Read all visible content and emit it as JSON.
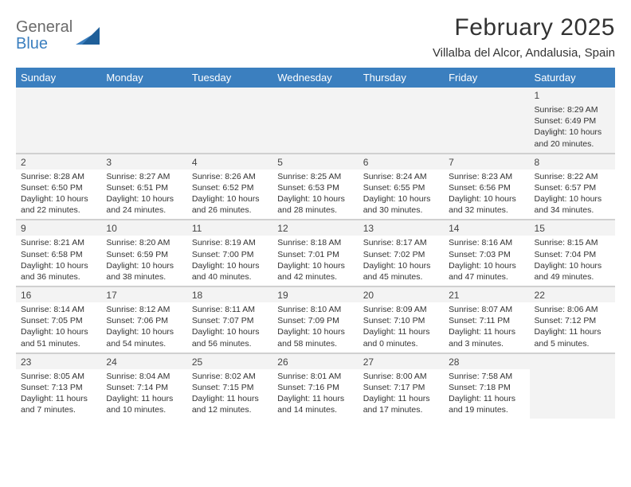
{
  "brand": {
    "line1": "General",
    "line2": "Blue",
    "text_color_line1": "#6b6b6b",
    "text_color_line2": "#3b7fbf",
    "triangle_color_dark": "#1f5f99",
    "triangle_color_light": "#3b7fbf"
  },
  "header": {
    "month_title": "February 2025",
    "location": "Villalba del Alcor, Andalusia, Spain",
    "title_fontsize": 30,
    "location_fontsize": 15,
    "title_color": "#333333"
  },
  "theme": {
    "weekday_bg": "#3b7fbf",
    "weekday_fg": "#ffffff",
    "row_divider": "#d0d0d0",
    "shade_bg": "#f3f3f3",
    "cell_font_size": 10.5,
    "daynum_font_size": 12
  },
  "weekdays": [
    "Sunday",
    "Monday",
    "Tuesday",
    "Wednesday",
    "Thursday",
    "Friday",
    "Saturday"
  ],
  "weeks": [
    [
      null,
      null,
      null,
      null,
      null,
      null,
      {
        "n": "1",
        "sunrise": "Sunrise: 8:29 AM",
        "sunset": "Sunset: 6:49 PM",
        "daylight": "Daylight: 10 hours and 20 minutes."
      }
    ],
    [
      {
        "n": "2",
        "sunrise": "Sunrise: 8:28 AM",
        "sunset": "Sunset: 6:50 PM",
        "daylight": "Daylight: 10 hours and 22 minutes."
      },
      {
        "n": "3",
        "sunrise": "Sunrise: 8:27 AM",
        "sunset": "Sunset: 6:51 PM",
        "daylight": "Daylight: 10 hours and 24 minutes."
      },
      {
        "n": "4",
        "sunrise": "Sunrise: 8:26 AM",
        "sunset": "Sunset: 6:52 PM",
        "daylight": "Daylight: 10 hours and 26 minutes."
      },
      {
        "n": "5",
        "sunrise": "Sunrise: 8:25 AM",
        "sunset": "Sunset: 6:53 PM",
        "daylight": "Daylight: 10 hours and 28 minutes."
      },
      {
        "n": "6",
        "sunrise": "Sunrise: 8:24 AM",
        "sunset": "Sunset: 6:55 PM",
        "daylight": "Daylight: 10 hours and 30 minutes."
      },
      {
        "n": "7",
        "sunrise": "Sunrise: 8:23 AM",
        "sunset": "Sunset: 6:56 PM",
        "daylight": "Daylight: 10 hours and 32 minutes."
      },
      {
        "n": "8",
        "sunrise": "Sunrise: 8:22 AM",
        "sunset": "Sunset: 6:57 PM",
        "daylight": "Daylight: 10 hours and 34 minutes."
      }
    ],
    [
      {
        "n": "9",
        "sunrise": "Sunrise: 8:21 AM",
        "sunset": "Sunset: 6:58 PM",
        "daylight": "Daylight: 10 hours and 36 minutes."
      },
      {
        "n": "10",
        "sunrise": "Sunrise: 8:20 AM",
        "sunset": "Sunset: 6:59 PM",
        "daylight": "Daylight: 10 hours and 38 minutes."
      },
      {
        "n": "11",
        "sunrise": "Sunrise: 8:19 AM",
        "sunset": "Sunset: 7:00 PM",
        "daylight": "Daylight: 10 hours and 40 minutes."
      },
      {
        "n": "12",
        "sunrise": "Sunrise: 8:18 AM",
        "sunset": "Sunset: 7:01 PM",
        "daylight": "Daylight: 10 hours and 42 minutes."
      },
      {
        "n": "13",
        "sunrise": "Sunrise: 8:17 AM",
        "sunset": "Sunset: 7:02 PM",
        "daylight": "Daylight: 10 hours and 45 minutes."
      },
      {
        "n": "14",
        "sunrise": "Sunrise: 8:16 AM",
        "sunset": "Sunset: 7:03 PM",
        "daylight": "Daylight: 10 hours and 47 minutes."
      },
      {
        "n": "15",
        "sunrise": "Sunrise: 8:15 AM",
        "sunset": "Sunset: 7:04 PM",
        "daylight": "Daylight: 10 hours and 49 minutes."
      }
    ],
    [
      {
        "n": "16",
        "sunrise": "Sunrise: 8:14 AM",
        "sunset": "Sunset: 7:05 PM",
        "daylight": "Daylight: 10 hours and 51 minutes."
      },
      {
        "n": "17",
        "sunrise": "Sunrise: 8:12 AM",
        "sunset": "Sunset: 7:06 PM",
        "daylight": "Daylight: 10 hours and 54 minutes."
      },
      {
        "n": "18",
        "sunrise": "Sunrise: 8:11 AM",
        "sunset": "Sunset: 7:07 PM",
        "daylight": "Daylight: 10 hours and 56 minutes."
      },
      {
        "n": "19",
        "sunrise": "Sunrise: 8:10 AM",
        "sunset": "Sunset: 7:09 PM",
        "daylight": "Daylight: 10 hours and 58 minutes."
      },
      {
        "n": "20",
        "sunrise": "Sunrise: 8:09 AM",
        "sunset": "Sunset: 7:10 PM",
        "daylight": "Daylight: 11 hours and 0 minutes."
      },
      {
        "n": "21",
        "sunrise": "Sunrise: 8:07 AM",
        "sunset": "Sunset: 7:11 PM",
        "daylight": "Daylight: 11 hours and 3 minutes."
      },
      {
        "n": "22",
        "sunrise": "Sunrise: 8:06 AM",
        "sunset": "Sunset: 7:12 PM",
        "daylight": "Daylight: 11 hours and 5 minutes."
      }
    ],
    [
      {
        "n": "23",
        "sunrise": "Sunrise: 8:05 AM",
        "sunset": "Sunset: 7:13 PM",
        "daylight": "Daylight: 11 hours and 7 minutes."
      },
      {
        "n": "24",
        "sunrise": "Sunrise: 8:04 AM",
        "sunset": "Sunset: 7:14 PM",
        "daylight": "Daylight: 11 hours and 10 minutes."
      },
      {
        "n": "25",
        "sunrise": "Sunrise: 8:02 AM",
        "sunset": "Sunset: 7:15 PM",
        "daylight": "Daylight: 11 hours and 12 minutes."
      },
      {
        "n": "26",
        "sunrise": "Sunrise: 8:01 AM",
        "sunset": "Sunset: 7:16 PM",
        "daylight": "Daylight: 11 hours and 14 minutes."
      },
      {
        "n": "27",
        "sunrise": "Sunrise: 8:00 AM",
        "sunset": "Sunset: 7:17 PM",
        "daylight": "Daylight: 11 hours and 17 minutes."
      },
      {
        "n": "28",
        "sunrise": "Sunrise: 7:58 AM",
        "sunset": "Sunset: 7:18 PM",
        "daylight": "Daylight: 11 hours and 19 minutes."
      },
      null
    ]
  ]
}
